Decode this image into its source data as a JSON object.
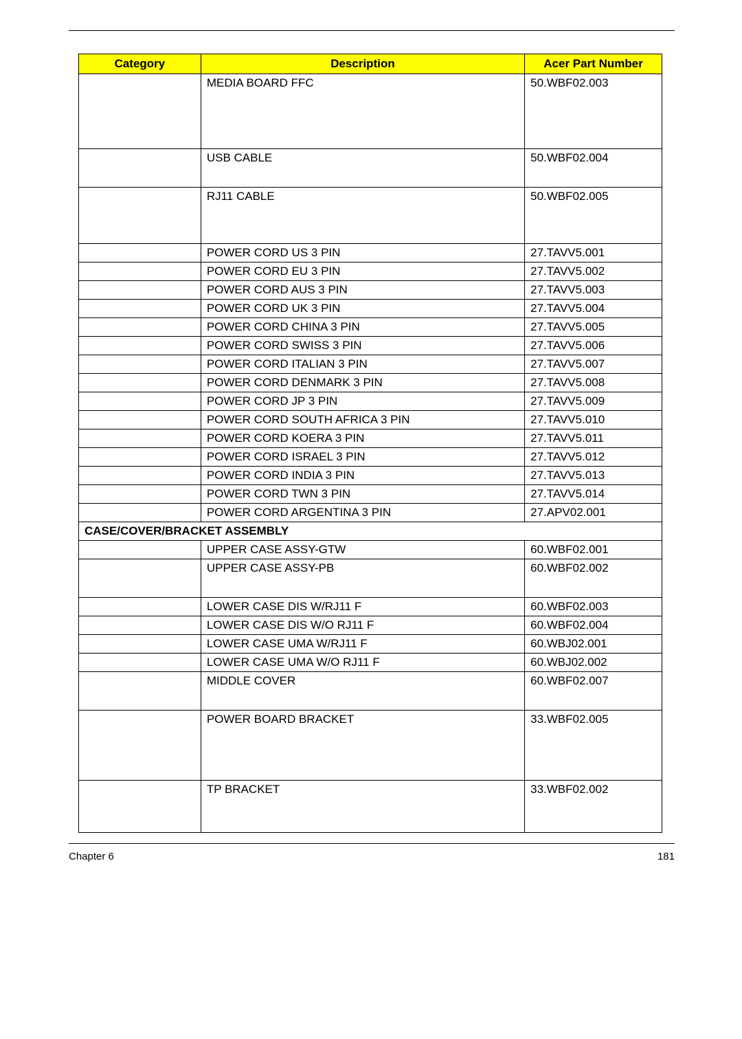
{
  "headers": {
    "category": "Category",
    "description": "Description",
    "partnum": "Acer Part Number"
  },
  "rows": [
    {
      "class": "tall-row",
      "cat": "",
      "desc": "MEDIA BOARD FFC",
      "part": "50.WBF02.003"
    },
    {
      "class": "med-row",
      "cat": "",
      "desc": "USB CABLE",
      "part": "50.WBF02.004"
    },
    {
      "class": "med2-row",
      "cat": "",
      "desc": "RJ11 CABLE",
      "part": "50.WBF02.005"
    },
    {
      "class": "",
      "cat": "",
      "desc": "POWER CORD US 3 PIN",
      "part": "27.TAVV5.001"
    },
    {
      "class": "",
      "cat": "",
      "desc": "POWER CORD EU 3 PIN",
      "part": "27.TAVV5.002"
    },
    {
      "class": "",
      "cat": "",
      "desc": "POWER CORD AUS 3 PIN",
      "part": "27.TAVV5.003"
    },
    {
      "class": "",
      "cat": "",
      "desc": "POWER CORD UK 3 PIN",
      "part": "27.TAVV5.004"
    },
    {
      "class": "",
      "cat": "",
      "desc": "POWER CORD CHINA 3 PIN",
      "part": "27.TAVV5.005"
    },
    {
      "class": "",
      "cat": "",
      "desc": "POWER CORD SWISS 3 PIN",
      "part": "27.TAVV5.006"
    },
    {
      "class": "",
      "cat": "",
      "desc": "POWER CORD ITALIAN 3 PIN",
      "part": "27.TAVV5.007"
    },
    {
      "class": "",
      "cat": "",
      "desc": "POWER CORD DENMARK 3 PIN",
      "part": "27.TAVV5.008"
    },
    {
      "class": "",
      "cat": "",
      "desc": "POWER CORD JP 3 PIN",
      "part": "27.TAVV5.009"
    },
    {
      "class": "",
      "cat": "",
      "desc": "POWER CORD SOUTH AFRICA 3 PIN",
      "part": "27.TAVV5.010"
    },
    {
      "class": "",
      "cat": "",
      "desc": "POWER CORD KOERA 3 PIN",
      "part": "27.TAVV5.011"
    },
    {
      "class": "",
      "cat": "",
      "desc": "POWER CORD ISRAEL 3 PIN",
      "part": "27.TAVV5.012"
    },
    {
      "class": "",
      "cat": "",
      "desc": "POWER CORD INDIA 3 PIN",
      "part": "27.TAVV5.013"
    },
    {
      "class": "",
      "cat": "",
      "desc": "POWER CORD TWN 3 PIN",
      "part": "27.TAVV5.014"
    },
    {
      "class": "",
      "cat": "",
      "desc": "POWER CORD ARGENTINA 3 PIN",
      "part": "27.APV02.001"
    },
    {
      "class": "section-row",
      "section": "CASE/COVER/BRACKET ASSEMBLY"
    },
    {
      "class": "",
      "cat": "",
      "desc": "UPPER CASE ASSY-GTW",
      "part": "60.WBF02.001"
    },
    {
      "class": "med-row",
      "cat": "",
      "desc": "UPPER CASE ASSY-PB",
      "part": "60.WBF02.002"
    },
    {
      "class": "",
      "cat": "",
      "desc": "LOWER CASE DIS W/RJ11 F",
      "part": "60.WBF02.003"
    },
    {
      "class": "",
      "cat": "",
      "desc": "LOWER CASE DIS W/O RJ11 F",
      "part": "60.WBF02.004"
    },
    {
      "class": "",
      "cat": "",
      "desc": "LOWER CASE UMA W/RJ11 F",
      "part": "60.WBJ02.001"
    },
    {
      "class": "",
      "cat": "",
      "desc": "LOWER CASE UMA W/O RJ11 F",
      "part": "60.WBJ02.002"
    },
    {
      "class": "med-row",
      "cat": "",
      "desc": "MIDDLE COVER",
      "part": "60.WBF02.007"
    },
    {
      "class": "power-row",
      "cat": "",
      "desc": "POWER BOARD BRACKET",
      "part": "33.WBF02.005"
    },
    {
      "class": "tp-row",
      "cat": "",
      "desc": "TP BRACKET",
      "part": "33.WBF02.002"
    }
  ],
  "footer": {
    "chapter": "Chapter 6",
    "page": "181"
  }
}
